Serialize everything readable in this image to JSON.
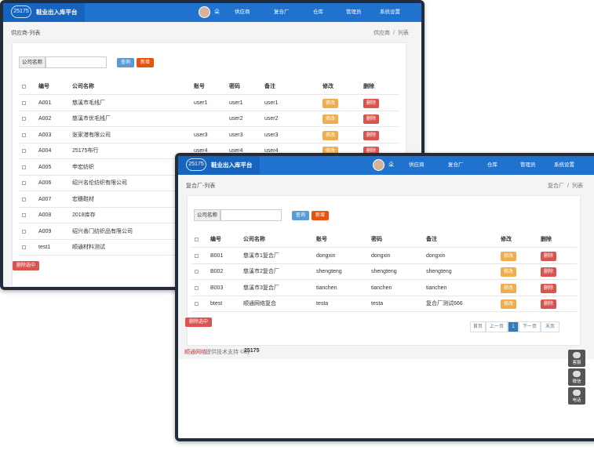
{
  "windows": [
    {
      "logo": "25175",
      "title": "鞋业出入库平台",
      "user": "朵",
      "nav": [
        "供应商",
        "复合厂",
        "仓库",
        "管理员",
        "系统设置"
      ],
      "breadcrumb": "供应商-列表",
      "crumb_path": [
        "供应商",
        "列表"
      ],
      "separator": "/",
      "search_label": "公司名称",
      "search_button": "查询",
      "add_button": "新增",
      "columns": [
        "编号",
        "公司名称",
        "账号",
        "密码",
        "备注",
        "修改",
        "删除"
      ],
      "rows": [
        [
          "A001",
          "慈溪市毛线厂",
          "user1",
          "user1",
          "user1"
        ],
        [
          "A002",
          "慈溪市优毛线厂",
          "",
          "user2",
          "user2"
        ],
        [
          "A003",
          "张家港有限公司",
          "user3",
          "user3",
          "user3"
        ],
        [
          "A004",
          "25175布行",
          "user4",
          "user4",
          "user4"
        ],
        [
          "A005",
          "申宏纺织"
        ],
        [
          "A006",
          "绍兴名伦纺织有限公司"
        ],
        [
          "A007",
          "宏穗鞋材"
        ],
        [
          "A008",
          "2018库存"
        ],
        [
          "A009",
          "绍兴善门纺织品有限公司"
        ],
        [
          "test1",
          "顺通材料测试"
        ]
      ],
      "edit_button": "修改",
      "delete_button": "删除",
      "delete_selected": "删除选中"
    },
    {
      "logo": "25175",
      "title": "鞋业出入库平台",
      "user": "朵",
      "nav": [
        "供应商",
        "复合厂",
        "仓库",
        "管理员",
        "系统设置"
      ],
      "breadcrumb": "复合厂-列表",
      "crumb_path": [
        "复合厂",
        "列表"
      ],
      "separator": "/",
      "search_label": "公司名称",
      "search_button": "查询",
      "add_button": "新增",
      "columns": [
        "编号",
        "公司名称",
        "账号",
        "密码",
        "备注",
        "修改",
        "删除"
      ],
      "rows": [
        [
          "B001",
          "慈溪市1复合厂",
          "dongxin",
          "dongxin",
          "dongxin"
        ],
        [
          "B002",
          "慈溪市2复合厂",
          "shengteng",
          "shengteng",
          "shengteng"
        ],
        [
          "B003",
          "慈溪市3复合厂",
          "tianchen",
          "tianchen",
          "tianchen"
        ],
        [
          "btest",
          "顺通网络复合",
          "testa",
          "testa",
          "复合厂测试666"
        ]
      ],
      "edit_button": "修改",
      "delete_button": "删除",
      "delete_selected": "删除选中",
      "pagination": [
        "首页",
        "上一页",
        "1",
        "下一页",
        "末页"
      ],
      "footer": {
        "company": "顺通网络",
        "support": "提供技术支持 ©by",
        "brand": "25175"
      },
      "side_buttons": [
        "客服",
        "微信",
        "电话"
      ]
    }
  ]
}
